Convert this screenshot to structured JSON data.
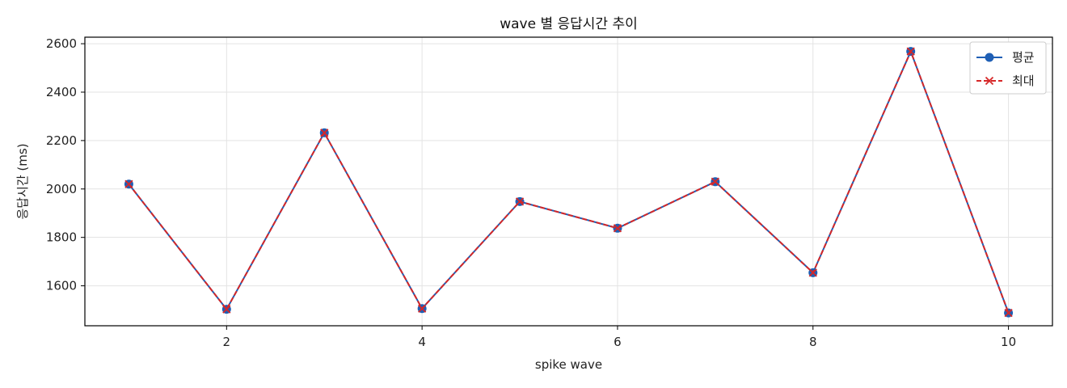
{
  "chart_data": {
    "type": "line",
    "title": "wave 별 응답시간 추이",
    "xlabel": "spike wave",
    "ylabel": "응답시간 (ms)",
    "x": [
      1,
      2,
      3,
      4,
      5,
      6,
      7,
      8,
      9,
      10
    ],
    "xlim": [
      0.55,
      10.45
    ],
    "ylim": [
      1435,
      2627
    ],
    "xticks": [
      2,
      4,
      6,
      8,
      10
    ],
    "yticks": [
      1600,
      1800,
      2000,
      2200,
      2400,
      2600
    ],
    "grid": true,
    "legend_position": "top-right",
    "series": [
      {
        "name": "평균",
        "values": [
          2020,
          1503,
          2232,
          1506,
          1948,
          1838,
          2030,
          1654,
          2568,
          1488
        ],
        "color": "#1f5fb5",
        "marker": "circle",
        "linestyle": "solid"
      },
      {
        "name": "최대",
        "values": [
          2020,
          1503,
          2232,
          1506,
          1948,
          1838,
          2030,
          1654,
          2568,
          1488
        ],
        "color": "#d62728",
        "marker": "x",
        "linestyle": "dashed"
      }
    ]
  }
}
